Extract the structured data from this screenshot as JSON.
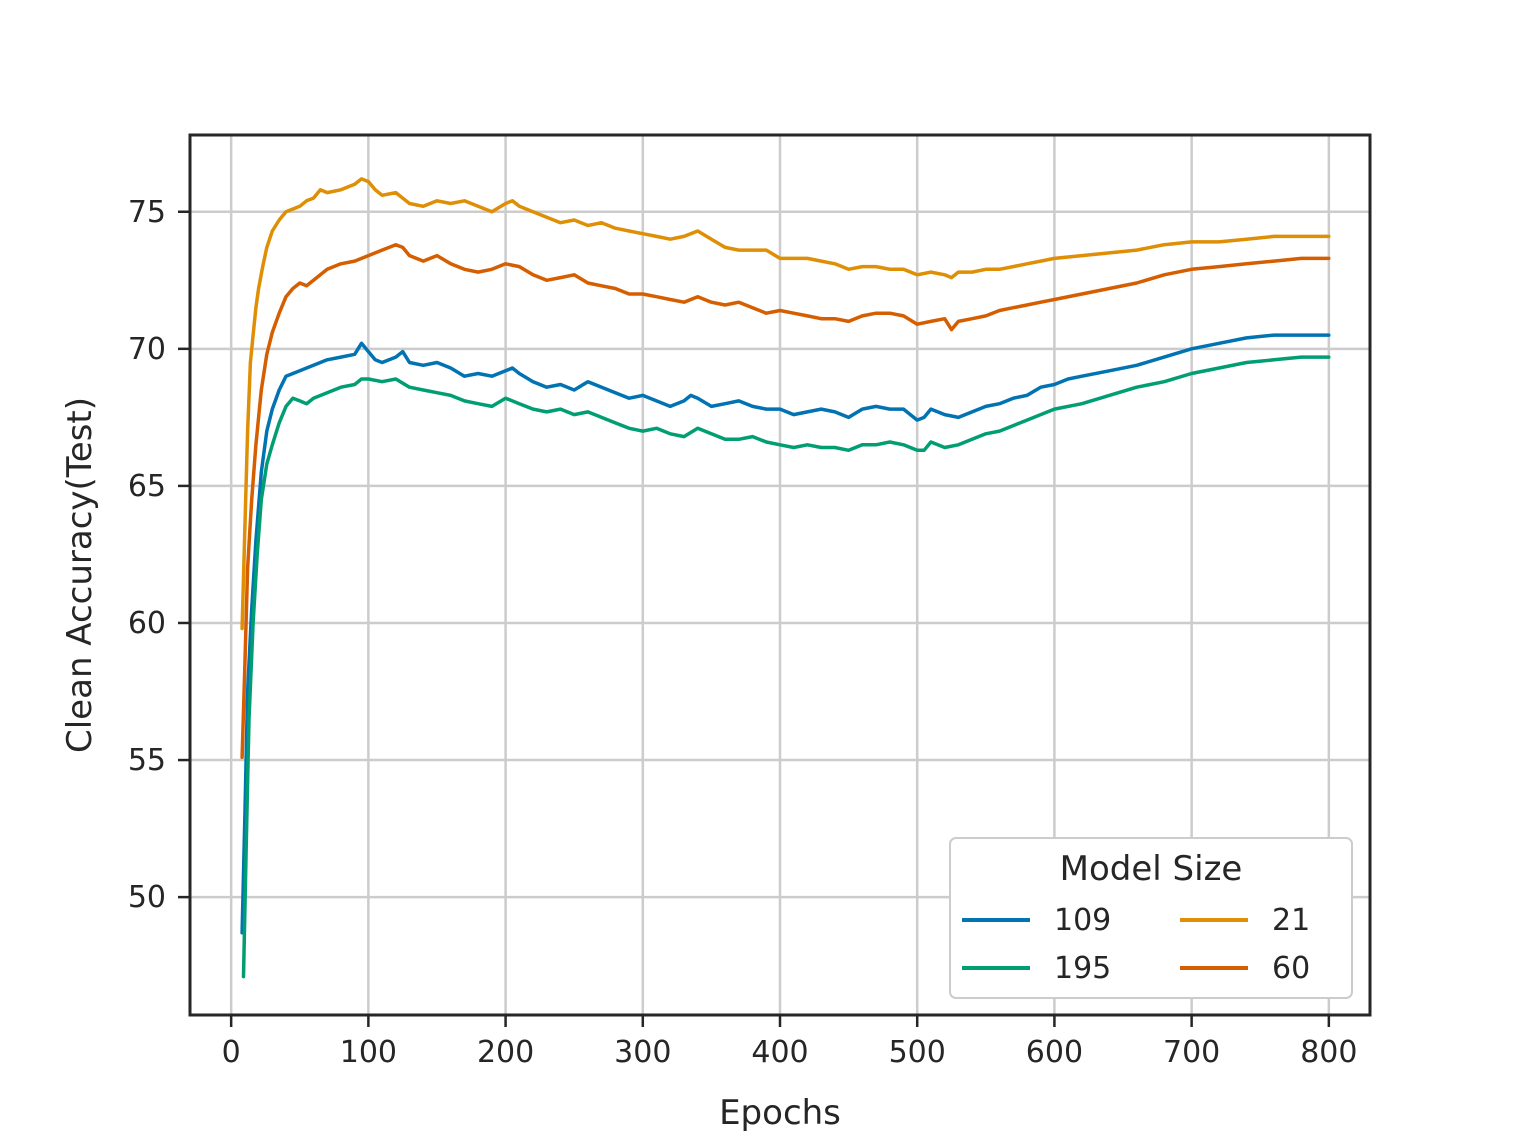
{
  "chart_data": {
    "type": "line",
    "title": "",
    "xlabel": "Epochs",
    "ylabel": "Clean Accuracy(Test)",
    "xlim": [
      -30,
      830
    ],
    "ylim": [
      45.7,
      77.8
    ],
    "xticks": [
      0,
      100,
      200,
      300,
      400,
      500,
      600,
      700,
      800
    ],
    "yticks": [
      50,
      55,
      60,
      65,
      70,
      75
    ],
    "grid": true,
    "legend": {
      "title": "Model Size",
      "placement": "lower-right",
      "columns": 2
    },
    "series": [
      {
        "name": "109",
        "color": "#0173b2",
        "x": [
          8,
          10,
          12,
          15,
          18,
          22,
          26,
          30,
          35,
          40,
          45,
          50,
          55,
          60,
          70,
          80,
          90,
          95,
          100,
          105,
          110,
          120,
          125,
          130,
          140,
          150,
          160,
          170,
          180,
          190,
          200,
          205,
          210,
          220,
          230,
          240,
          250,
          260,
          270,
          280,
          290,
          300,
          310,
          320,
          330,
          335,
          340,
          350,
          360,
          370,
          380,
          390,
          400,
          410,
          420,
          430,
          440,
          450,
          460,
          470,
          480,
          490,
          500,
          505,
          510,
          520,
          530,
          540,
          550,
          560,
          570,
          580,
          590,
          600,
          610,
          620,
          640,
          660,
          680,
          700,
          720,
          740,
          760,
          780,
          800
        ],
        "y": [
          48.7,
          53.0,
          57.5,
          60.5,
          63.0,
          65.5,
          67.0,
          67.8,
          68.5,
          69.0,
          69.1,
          69.2,
          69.3,
          69.4,
          69.6,
          69.7,
          69.8,
          70.2,
          69.9,
          69.6,
          69.5,
          69.7,
          69.9,
          69.5,
          69.4,
          69.5,
          69.3,
          69.0,
          69.1,
          69.0,
          69.2,
          69.3,
          69.1,
          68.8,
          68.6,
          68.7,
          68.5,
          68.8,
          68.6,
          68.4,
          68.2,
          68.3,
          68.1,
          67.9,
          68.1,
          68.3,
          68.2,
          67.9,
          68.0,
          68.1,
          67.9,
          67.8,
          67.8,
          67.6,
          67.7,
          67.8,
          67.7,
          67.5,
          67.8,
          67.9,
          67.8,
          67.8,
          67.4,
          67.5,
          67.8,
          67.6,
          67.5,
          67.7,
          67.9,
          68.0,
          68.2,
          68.3,
          68.6,
          68.7,
          68.9,
          69.0,
          69.2,
          69.4,
          69.7,
          70.0,
          70.2,
          70.4,
          70.5,
          70.5,
          70.5
        ]
      },
      {
        "name": "21",
        "color": "#de8f05",
        "x": [
          8,
          10,
          12,
          14,
          16,
          18,
          20,
          23,
          26,
          30,
          35,
          40,
          45,
          50,
          55,
          60,
          65,
          70,
          80,
          90,
          95,
          100,
          105,
          110,
          120,
          130,
          140,
          150,
          160,
          170,
          180,
          190,
          200,
          205,
          210,
          220,
          230,
          240,
          250,
          260,
          270,
          280,
          290,
          300,
          310,
          320,
          330,
          340,
          350,
          360,
          370,
          380,
          390,
          400,
          410,
          420,
          430,
          440,
          450,
          460,
          470,
          480,
          490,
          500,
          510,
          520,
          525,
          530,
          540,
          550,
          560,
          570,
          580,
          590,
          600,
          620,
          640,
          660,
          680,
          700,
          720,
          740,
          760,
          780,
          800
        ],
        "y": [
          59.8,
          63.5,
          67.0,
          69.5,
          70.5,
          71.5,
          72.2,
          73.0,
          73.7,
          74.3,
          74.7,
          75.0,
          75.1,
          75.2,
          75.4,
          75.5,
          75.8,
          75.7,
          75.8,
          76.0,
          76.2,
          76.1,
          75.8,
          75.6,
          75.7,
          75.3,
          75.2,
          75.4,
          75.3,
          75.4,
          75.2,
          75.0,
          75.3,
          75.4,
          75.2,
          75.0,
          74.8,
          74.6,
          74.7,
          74.5,
          74.6,
          74.4,
          74.3,
          74.2,
          74.1,
          74.0,
          74.1,
          74.3,
          74.0,
          73.7,
          73.6,
          73.6,
          73.6,
          73.3,
          73.3,
          73.3,
          73.2,
          73.1,
          72.9,
          73.0,
          73.0,
          72.9,
          72.9,
          72.7,
          72.8,
          72.7,
          72.6,
          72.8,
          72.8,
          72.9,
          72.9,
          73.0,
          73.1,
          73.2,
          73.3,
          73.4,
          73.5,
          73.6,
          73.8,
          73.9,
          73.9,
          74.0,
          74.1,
          74.1,
          74.1
        ]
      },
      {
        "name": "195",
        "color": "#029e73",
        "x": [
          9,
          11,
          13,
          16,
          19,
          22,
          26,
          30,
          35,
          40,
          45,
          50,
          55,
          60,
          70,
          80,
          90,
          95,
          100,
          110,
          120,
          130,
          140,
          150,
          160,
          170,
          180,
          190,
          200,
          210,
          220,
          230,
          240,
          250,
          260,
          270,
          280,
          290,
          300,
          310,
          320,
          330,
          340,
          350,
          360,
          370,
          380,
          390,
          400,
          410,
          420,
          430,
          440,
          450,
          460,
          470,
          480,
          490,
          500,
          505,
          510,
          520,
          530,
          540,
          550,
          560,
          570,
          580,
          590,
          600,
          620,
          640,
          660,
          680,
          700,
          720,
          740,
          760,
          780,
          800
        ],
        "y": [
          47.1,
          52.0,
          56.5,
          60.0,
          62.5,
          64.5,
          65.8,
          66.5,
          67.3,
          67.9,
          68.2,
          68.1,
          68.0,
          68.2,
          68.4,
          68.6,
          68.7,
          68.9,
          68.9,
          68.8,
          68.9,
          68.6,
          68.5,
          68.4,
          68.3,
          68.1,
          68.0,
          67.9,
          68.2,
          68.0,
          67.8,
          67.7,
          67.8,
          67.6,
          67.7,
          67.5,
          67.3,
          67.1,
          67.0,
          67.1,
          66.9,
          66.8,
          67.1,
          66.9,
          66.7,
          66.7,
          66.8,
          66.6,
          66.5,
          66.4,
          66.5,
          66.4,
          66.4,
          66.3,
          66.5,
          66.5,
          66.6,
          66.5,
          66.3,
          66.3,
          66.6,
          66.4,
          66.5,
          66.7,
          66.9,
          67.0,
          67.2,
          67.4,
          67.6,
          67.8,
          68.0,
          68.3,
          68.6,
          68.8,
          69.1,
          69.3,
          69.5,
          69.6,
          69.7,
          69.7
        ]
      },
      {
        "name": "60",
        "color": "#d55e00",
        "x": [
          8,
          10,
          12,
          15,
          18,
          22,
          26,
          30,
          35,
          40,
          45,
          50,
          55,
          60,
          70,
          80,
          90,
          100,
          110,
          120,
          125,
          130,
          140,
          150,
          160,
          170,
          180,
          190,
          200,
          210,
          220,
          230,
          240,
          250,
          260,
          270,
          280,
          290,
          300,
          310,
          320,
          330,
          340,
          350,
          360,
          370,
          380,
          390,
          400,
          410,
          420,
          430,
          440,
          450,
          460,
          470,
          480,
          490,
          500,
          510,
          520,
          525,
          530,
          540,
          550,
          560,
          570,
          580,
          590,
          600,
          620,
          640,
          660,
          680,
          700,
          720,
          740,
          760,
          780,
          800
        ],
        "y": [
          55.1,
          58.5,
          62.0,
          64.5,
          66.5,
          68.5,
          69.8,
          70.6,
          71.3,
          71.9,
          72.2,
          72.4,
          72.3,
          72.5,
          72.9,
          73.1,
          73.2,
          73.4,
          73.6,
          73.8,
          73.7,
          73.4,
          73.2,
          73.4,
          73.1,
          72.9,
          72.8,
          72.9,
          73.1,
          73.0,
          72.7,
          72.5,
          72.6,
          72.7,
          72.4,
          72.3,
          72.2,
          72.0,
          72.0,
          71.9,
          71.8,
          71.7,
          71.9,
          71.7,
          71.6,
          71.7,
          71.5,
          71.3,
          71.4,
          71.3,
          71.2,
          71.1,
          71.1,
          71.0,
          71.2,
          71.3,
          71.3,
          71.2,
          70.9,
          71.0,
          71.1,
          70.7,
          71.0,
          71.1,
          71.2,
          71.4,
          71.5,
          71.6,
          71.7,
          71.8,
          72.0,
          72.2,
          72.4,
          72.7,
          72.9,
          73.0,
          73.1,
          73.2,
          73.3,
          73.3
        ]
      }
    ]
  }
}
